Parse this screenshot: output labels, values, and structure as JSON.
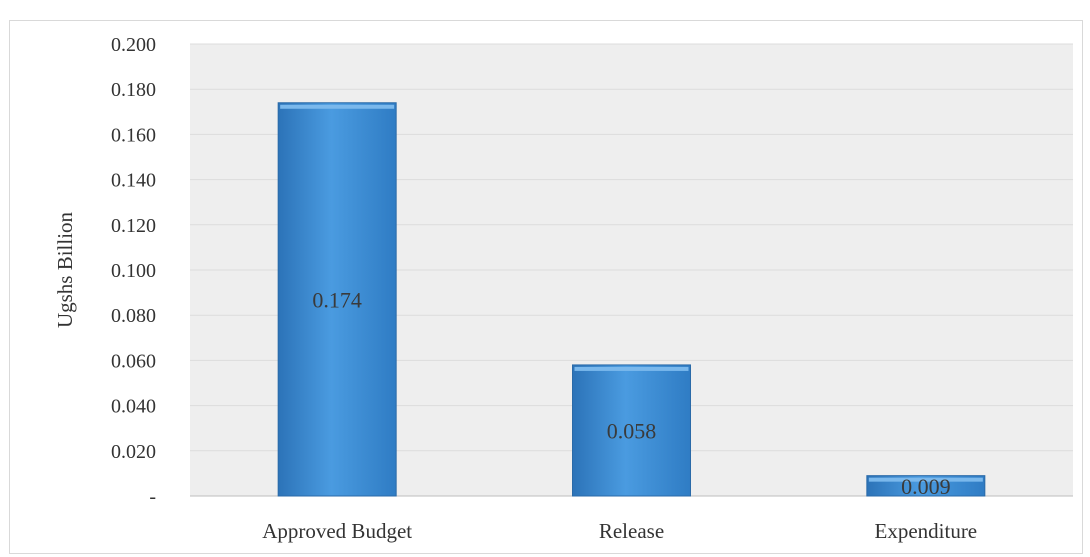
{
  "chart_data": {
    "type": "bar",
    "categories": [
      "Approved Budget",
      "Release",
      "Expenditure"
    ],
    "values": [
      0.174,
      0.058,
      0.009
    ],
    "data_labels": [
      "0.174",
      "0.058",
      "0.009"
    ],
    "ylabel": "Ugshs Billion",
    "ylim": [
      0,
      0.2
    ],
    "y_ticks": [
      0,
      0.02,
      0.04,
      0.06,
      0.08,
      0.1,
      0.12,
      0.14,
      0.16,
      0.18,
      0.2
    ],
    "y_tick_labels": [
      "-",
      "0.020",
      "0.040",
      "0.060",
      "0.080",
      "0.100",
      "0.120",
      "0.140",
      "0.160",
      "0.180",
      "0.200"
    ],
    "grid": true,
    "bar_color": "#3f8fd6",
    "plot_background": "#eeeeee",
    "legend": "none"
  }
}
